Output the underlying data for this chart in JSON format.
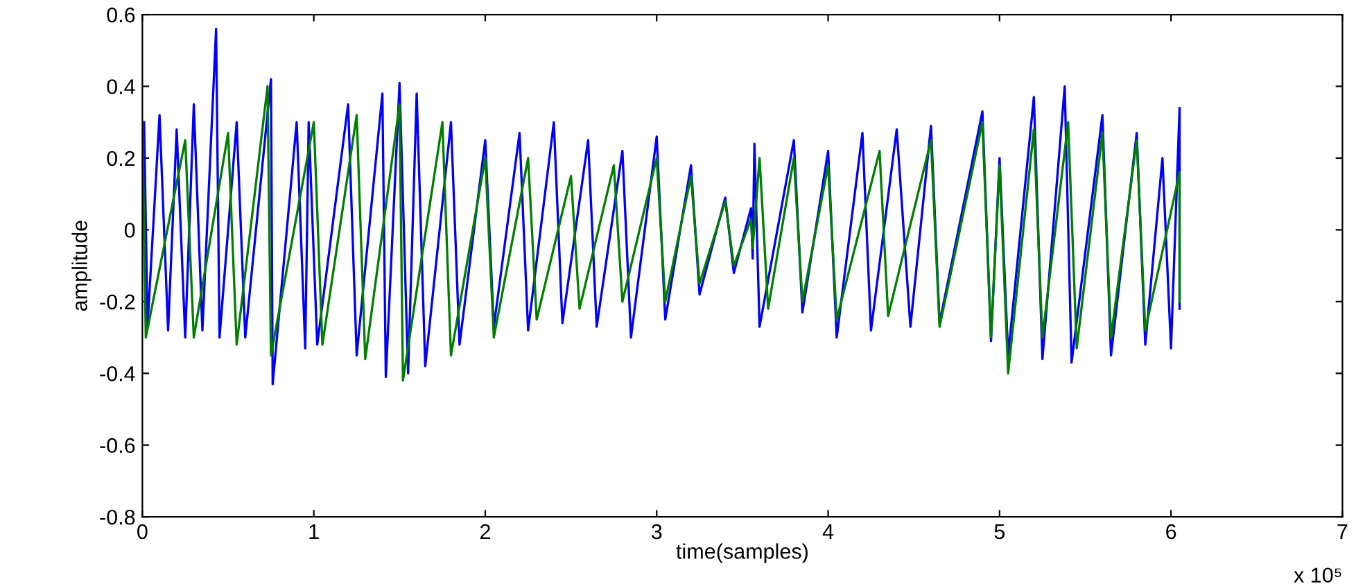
{
  "chart_data": {
    "type": "line",
    "xlabel": "time(samples)",
    "ylabel": "amplitude",
    "annotations": [
      "x 10⁵"
    ],
    "xlim": [
      0,
      7
    ],
    "xticks": [
      0,
      1,
      2,
      3,
      4,
      5,
      6,
      7
    ],
    "ylim": [
      -0.8,
      0.6
    ],
    "yticks": [
      -0.8,
      -0.6,
      -0.4,
      -0.2,
      0,
      0.2,
      0.4,
      0.6
    ],
    "grid": false,
    "legend": false,
    "series": [
      {
        "color": "#0000ff",
        "x": [
          0.01,
          0.03,
          0.1,
          0.15,
          0.2,
          0.25,
          0.3,
          0.35,
          0.43,
          0.45,
          0.55,
          0.6,
          0.75,
          0.76,
          0.9,
          0.95,
          0.97,
          1.02,
          1.2,
          1.25,
          1.4,
          1.42,
          1.5,
          1.55,
          1.6,
          1.65,
          1.8,
          1.85,
          2.0,
          2.05,
          2.2,
          2.25,
          2.4,
          2.45,
          2.6,
          2.65,
          2.8,
          2.85,
          3.0,
          3.05,
          3.2,
          3.25,
          3.4,
          3.45,
          3.55,
          3.56,
          3.57,
          3.6,
          3.8,
          3.85,
          4.0,
          4.05,
          4.2,
          4.25,
          4.4,
          4.48,
          4.6,
          4.65,
          4.9,
          4.95,
          5.0,
          5.05,
          5.2,
          5.25,
          5.38,
          5.42,
          5.6,
          5.65,
          5.8,
          5.85,
          5.95,
          6.0,
          6.05,
          6.05
        ],
        "values": [
          0.3,
          -0.27,
          0.32,
          -0.28,
          0.28,
          -0.3,
          0.35,
          -0.28,
          0.56,
          -0.3,
          0.3,
          -0.3,
          0.42,
          -0.43,
          0.3,
          -0.33,
          0.3,
          -0.32,
          0.35,
          -0.35,
          0.38,
          -0.41,
          0.41,
          -0.4,
          0.38,
          -0.38,
          0.3,
          -0.32,
          0.25,
          -0.27,
          0.27,
          -0.28,
          0.3,
          -0.26,
          0.25,
          -0.27,
          0.22,
          -0.3,
          0.26,
          -0.25,
          0.18,
          -0.18,
          0.09,
          -0.12,
          0.06,
          -0.08,
          0.24,
          -0.27,
          0.25,
          -0.23,
          0.22,
          -0.3,
          0.27,
          -0.28,
          0.28,
          -0.27,
          0.29,
          -0.26,
          0.33,
          -0.31,
          0.2,
          -0.35,
          0.37,
          -0.36,
          0.4,
          -0.37,
          0.32,
          -0.35,
          0.27,
          -0.32,
          0.2,
          -0.33,
          0.34,
          -0.22
        ]
      },
      {
        "color": "#007f00",
        "x": [
          0,
          0.02,
          0.25,
          0.3,
          0.5,
          0.55,
          0.73,
          0.75,
          1.0,
          1.05,
          1.25,
          1.3,
          1.5,
          1.52,
          1.75,
          1.8,
          2.0,
          2.05,
          2.25,
          2.3,
          2.5,
          2.55,
          2.75,
          2.8,
          3.0,
          3.05,
          3.2,
          3.25,
          3.4,
          3.45,
          3.55,
          3.56,
          3.6,
          3.65,
          3.8,
          3.85,
          4.0,
          4.05,
          4.3,
          4.35,
          4.6,
          4.65,
          4.9,
          4.95,
          5.0,
          5.05,
          5.2,
          5.25,
          5.4,
          5.45,
          5.6,
          5.65,
          5.8,
          5.85,
          6.05,
          6.05
        ],
        "values": [
          0.28,
          -0.3,
          0.25,
          -0.3,
          0.27,
          -0.32,
          0.4,
          -0.35,
          0.3,
          -0.32,
          0.32,
          -0.36,
          0.35,
          -0.42,
          0.3,
          -0.35,
          0.2,
          -0.3,
          0.2,
          -0.25,
          0.15,
          -0.22,
          0.18,
          -0.2,
          0.2,
          -0.2,
          0.15,
          -0.15,
          0.08,
          -0.1,
          0.03,
          -0.05,
          0.2,
          -0.22,
          0.2,
          -0.2,
          0.18,
          -0.25,
          0.22,
          -0.24,
          0.25,
          -0.27,
          0.3,
          -0.3,
          0.18,
          -0.4,
          0.28,
          -0.3,
          0.3,
          -0.33,
          0.27,
          -0.3,
          0.25,
          -0.28,
          0.16,
          -0.2
        ]
      }
    ]
  }
}
